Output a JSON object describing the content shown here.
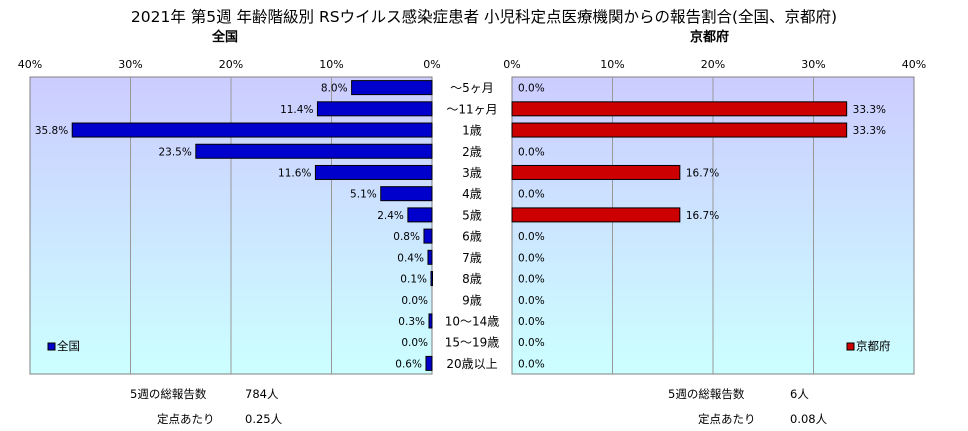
{
  "title": "2021年 第5週 年齢階級別 RSウイルス感染症患者 小児科定点医療機関からの報告割合(全国、京都府)",
  "categories": [
    "～5ヶ月",
    "～11ヶ月",
    "1歳",
    "2歳",
    "3歳",
    "4歳",
    "5歳",
    "6歳",
    "7歳",
    "8歳",
    "9歳",
    "10～14歳",
    "15～19歳",
    "20歳以上"
  ],
  "colors": {
    "national": "#0000cc",
    "kyoto": "#cc0000",
    "plot_bg_top": "#ccccff",
    "plot_bg_bottom": "#ccffff"
  },
  "chart_data": [
    {
      "type": "bar",
      "orientation": "horizontal",
      "direction": "right-to-left",
      "title": "全国",
      "categories": [
        "～5ヶ月",
        "～11ヶ月",
        "1歳",
        "2歳",
        "3歳",
        "4歳",
        "5歳",
        "6歳",
        "7歳",
        "8歳",
        "9歳",
        "10～14歳",
        "15～19歳",
        "20歳以上"
      ],
      "series": [
        {
          "name": "全国",
          "values": [
            8.0,
            11.4,
            35.8,
            23.5,
            11.6,
            5.1,
            2.4,
            0.8,
            0.4,
            0.1,
            0.0,
            0.3,
            0.0,
            0.6
          ]
        }
      ],
      "data_labels": [
        "8.0%",
        "11.4%",
        "35.8%",
        "23.5%",
        "11.6%",
        "5.1%",
        "2.4%",
        "0.8%",
        "0.4%",
        "0.1%",
        "0.0%",
        "0.3%",
        "0.0%",
        "0.6%"
      ],
      "xlim": [
        0,
        40
      ],
      "ticks": [
        "40%",
        "30%",
        "20%",
        "10%",
        "0%"
      ],
      "grid": true,
      "legend": "bottom-left"
    },
    {
      "type": "bar",
      "orientation": "horizontal",
      "title": "京都府",
      "categories": [
        "～5ヶ月",
        "～11ヶ月",
        "1歳",
        "2歳",
        "3歳",
        "4歳",
        "5歳",
        "6歳",
        "7歳",
        "8歳",
        "9歳",
        "10～14歳",
        "15～19歳",
        "20歳以上"
      ],
      "series": [
        {
          "name": "京都府",
          "values": [
            0.0,
            33.3,
            33.3,
            0.0,
            16.7,
            0.0,
            16.7,
            0.0,
            0.0,
            0.0,
            0.0,
            0.0,
            0.0,
            0.0
          ]
        }
      ],
      "data_labels": [
        "0.0%",
        "33.3%",
        "33.3%",
        "0.0%",
        "16.7%",
        "0.0%",
        "16.7%",
        "0.0%",
        "0.0%",
        "0.0%",
        "0.0%",
        "0.0%",
        "0.0%",
        "0.0%"
      ],
      "xlim": [
        0,
        40
      ],
      "ticks": [
        "0%",
        "10%",
        "20%",
        "30%",
        "40%"
      ],
      "grid": true,
      "legend": "bottom-right"
    }
  ],
  "stats": {
    "national": {
      "total_label": "5週の総報告数",
      "total_value": "784人",
      "per_label": "定点あたり",
      "per_value": "0.25人"
    },
    "kyoto": {
      "total_label": "5週の総報告数",
      "total_value": "6人",
      "per_label": "定点あたり",
      "per_value": "0.08人"
    }
  }
}
